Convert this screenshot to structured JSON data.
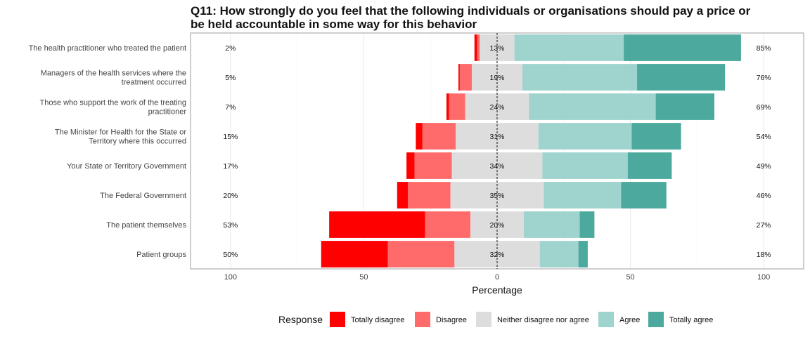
{
  "chart_data": {
    "type": "bar",
    "subtype": "diverging-stacked-horizontal",
    "title_lines": [
      "Q11: How strongly do you feel that the following individuals or organisations should pay a price or",
      "be held accountable in some way for this behavior"
    ],
    "xlabel": "Percentage",
    "xlim": [
      -115,
      115
    ],
    "xticks": [
      -100,
      -50,
      0,
      50,
      100
    ],
    "xtick_labels": [
      "100",
      "50",
      "0",
      "50",
      "100"
    ],
    "grid": true,
    "legend_position": "bottom",
    "legend_title": "Response",
    "series": [
      {
        "name": "Totally disagree",
        "color": "#ff0000"
      },
      {
        "name": "Disagree",
        "color": "#ff6b6b"
      },
      {
        "name": "Neither disagree nor agree",
        "color": "#dddddd"
      },
      {
        "name": "Agree",
        "color": "#9fd3cd"
      },
      {
        "name": "Totally agree",
        "color": "#4ba99d"
      }
    ],
    "categories": [
      {
        "label_lines": [
          "The health practitioner who treated the patient"
        ],
        "values": [
          1,
          1,
          13,
          41,
          44
        ],
        "low_label": "2%",
        "mid_label": "13%",
        "high_label": "85%"
      },
      {
        "label_lines": [
          "Managers of the health services where the",
          "treatment occurred"
        ],
        "values": [
          0.5,
          4.5,
          19,
          43,
          33
        ],
        "low_label": "5%",
        "mid_label": "19%",
        "high_label": "76%"
      },
      {
        "label_lines": [
          "Those who support the work of the treating",
          "practitioner"
        ],
        "values": [
          1,
          6,
          24,
          47.5,
          22
        ],
        "low_label": "7%",
        "mid_label": "24%",
        "high_label": "69%"
      },
      {
        "label_lines": [
          "The Minister for Health for the State or",
          "Territory where this occurred"
        ],
        "values": [
          2.5,
          12.5,
          31,
          35,
          18.5
        ],
        "low_label": "15%",
        "mid_label": "31%",
        "high_label": "54%"
      },
      {
        "label_lines": [
          "Your State or Territory Government"
        ],
        "values": [
          3,
          14,
          34,
          32,
          16.5
        ],
        "low_label": "17%",
        "mid_label": "34%",
        "high_label": "49%"
      },
      {
        "label_lines": [
          "The Federal Government"
        ],
        "values": [
          4,
          16,
          35,
          29,
          17
        ],
        "low_label": "20%",
        "mid_label": "35%",
        "high_label": "46%"
      },
      {
        "label_lines": [
          "The patient themselves"
        ],
        "values": [
          36,
          17,
          20,
          21,
          5.5
        ],
        "low_label": "53%",
        "mid_label": "20%",
        "high_label": "27%"
      },
      {
        "label_lines": [
          "Patient groups"
        ],
        "values": [
          25,
          25,
          32,
          14.5,
          3.5
        ],
        "low_label": "50%",
        "mid_label": "32%",
        "high_label": "18%"
      }
    ]
  }
}
